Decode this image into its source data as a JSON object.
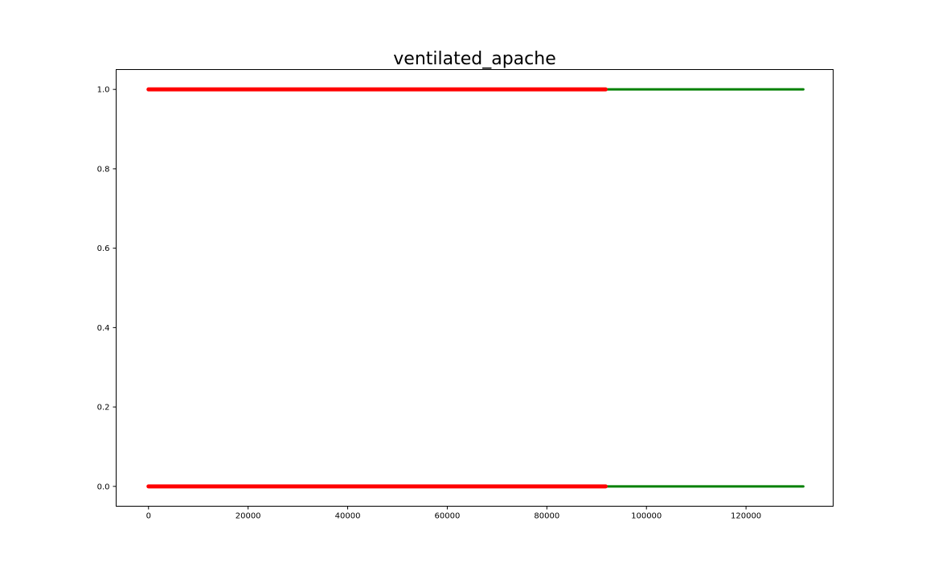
{
  "chart_data": {
    "type": "scatter",
    "title": "ventilated_apache",
    "xlabel": "",
    "ylabel": "",
    "xlim": [
      -6500,
      137500
    ],
    "ylim": [
      -0.05,
      1.05
    ],
    "x_ticks": [
      0,
      20000,
      40000,
      60000,
      80000,
      100000,
      120000
    ],
    "x_tick_labels": [
      "0",
      "20000",
      "40000",
      "60000",
      "80000",
      "100000",
      "120000"
    ],
    "y_ticks": [
      0.0,
      0.2,
      0.4,
      0.6,
      0.8,
      1.0
    ],
    "y_tick_labels": [
      "0.0",
      "0.2",
      "0.4",
      "0.6",
      "0.8",
      "1.0"
    ],
    "grid": false,
    "legend": "none",
    "series": [
      {
        "color": "#008000",
        "segments": [
          {
            "y": 1.0,
            "x_start": 0,
            "x_end": 131500
          },
          {
            "y": 0.0,
            "x_start": 0,
            "x_end": 131500
          }
        ]
      },
      {
        "color": "#ff0000",
        "segments": [
          {
            "y": 1.0,
            "x_start": 0,
            "x_end": 91800
          },
          {
            "y": 0.0,
            "x_start": 0,
            "x_end": 91800
          }
        ]
      }
    ]
  }
}
